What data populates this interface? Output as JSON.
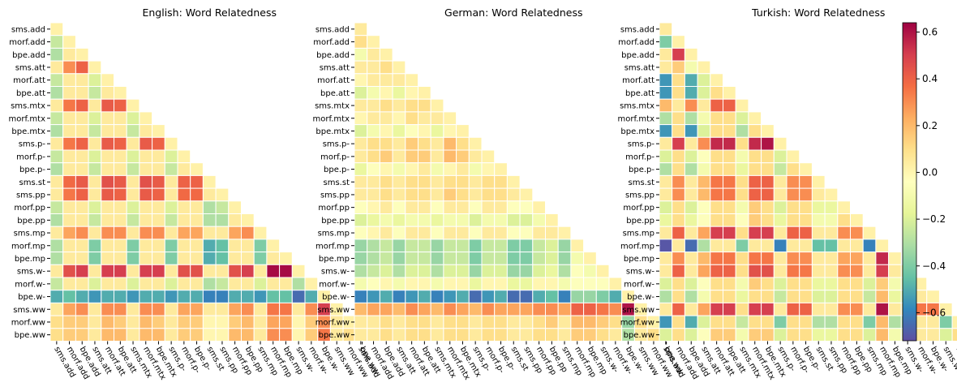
{
  "chart_data": [
    {
      "type": "heatmap",
      "title": "English: Word Relatedness",
      "categories": [
        "sms.add",
        "morf.add",
        "bpe.add",
        "sms.att",
        "morf.att",
        "bpe.att",
        "sms.mtx",
        "morf.mtx",
        "bpe.mtx",
        "sms.p-",
        "morf.p-",
        "bpe.p-",
        "sms.st",
        "sms.pp",
        "morf.pp",
        "bpe.pp",
        "sms.mp",
        "morf.mp",
        "bpe.mp",
        "sms.w-",
        "morf.w-",
        "bpe.w-",
        "sms.ww",
        "morf.ww",
        "bpe.ww"
      ],
      "values": [
        [
          0.02
        ],
        [
          -0.25,
          0.02
        ],
        [
          -0.3,
          0.05,
          0.02
        ],
        [
          0.05,
          0.3,
          0.4,
          0.02
        ],
        [
          -0.25,
          0.05,
          0.05,
          -0.2,
          0.02
        ],
        [
          -0.3,
          0.05,
          0.05,
          -0.25,
          0.05,
          0.02
        ],
        [
          0.05,
          0.35,
          0.4,
          0.05,
          0.42,
          0.4,
          0.02
        ],
        [
          -0.25,
          0.05,
          0.05,
          -0.2,
          0.05,
          0.05,
          -0.2,
          0.02
        ],
        [
          -0.3,
          0.05,
          0.05,
          -0.25,
          0.05,
          0.05,
          -0.25,
          0.05,
          0.02
        ],
        [
          0.05,
          0.35,
          0.4,
          0.05,
          0.42,
          0.4,
          0.05,
          0.42,
          0.4,
          0.02
        ],
        [
          -0.25,
          0.05,
          0.05,
          -0.2,
          0.05,
          0.05,
          -0.2,
          0.05,
          0.05,
          -0.2,
          0.02
        ],
        [
          -0.3,
          0.05,
          0.05,
          -0.25,
          0.05,
          0.05,
          -0.25,
          0.05,
          0.05,
          -0.25,
          0.05,
          0.02
        ],
        [
          0.05,
          0.38,
          0.42,
          0.05,
          0.45,
          0.42,
          0.05,
          0.45,
          0.42,
          0.05,
          0.4,
          0.4,
          0.02
        ],
        [
          0.05,
          0.35,
          0.4,
          0.05,
          0.42,
          0.4,
          0.05,
          0.42,
          0.4,
          0.05,
          0.38,
          0.38,
          0.05,
          0.02
        ],
        [
          -0.25,
          0.05,
          0.05,
          -0.2,
          0.05,
          0.05,
          -0.2,
          0.05,
          0.05,
          -0.2,
          0.05,
          0.05,
          -0.3,
          -0.25,
          0.02
        ],
        [
          -0.3,
          0.05,
          0.05,
          -0.25,
          0.05,
          0.05,
          -0.25,
          0.05,
          0.05,
          -0.25,
          0.05,
          0.05,
          -0.3,
          -0.3,
          0.05,
          0.02
        ],
        [
          0.05,
          0.25,
          0.3,
          0.05,
          0.3,
          0.3,
          0.05,
          0.3,
          0.3,
          0.05,
          0.25,
          0.25,
          0.05,
          0.05,
          0.25,
          0.3,
          0.02
        ],
        [
          -0.3,
          0.05,
          0.05,
          -0.4,
          0.05,
          0.05,
          -0.4,
          0.05,
          0.05,
          -0.4,
          0.05,
          0.05,
          -0.5,
          -0.45,
          0.05,
          0.05,
          -0.4,
          0.02
        ],
        [
          -0.3,
          0.05,
          0.05,
          -0.4,
          0.05,
          0.05,
          -0.4,
          0.05,
          0.05,
          -0.4,
          0.05,
          0.05,
          -0.5,
          -0.45,
          0.05,
          0.05,
          -0.4,
          0.05,
          0.02
        ],
        [
          0.05,
          0.45,
          0.5,
          0.05,
          0.5,
          0.5,
          0.05,
          0.5,
          0.5,
          0.05,
          0.45,
          0.45,
          0.05,
          0.05,
          0.45,
          0.5,
          0.05,
          0.62,
          0.62,
          0.02
        ],
        [
          -0.25,
          0.05,
          0.05,
          -0.2,
          0.05,
          0.05,
          -0.2,
          0.05,
          0.05,
          -0.2,
          0.05,
          0.05,
          -0.3,
          -0.25,
          0.05,
          0.05,
          -0.2,
          0.05,
          0.05,
          -0.3,
          0.02
        ],
        [
          -0.5,
          -0.45,
          -0.5,
          -0.55,
          -0.5,
          -0.5,
          -0.55,
          -0.5,
          -0.5,
          -0.55,
          -0.5,
          -0.5,
          -0.6,
          -0.6,
          -0.5,
          -0.5,
          -0.55,
          -0.45,
          -0.45,
          -0.65,
          -0.5,
          0.02
        ],
        [
          0.05,
          0.25,
          0.3,
          0.05,
          0.3,
          0.3,
          0.05,
          0.3,
          0.3,
          0.05,
          0.25,
          0.25,
          0.05,
          0.05,
          0.25,
          0.3,
          0.05,
          0.35,
          0.35,
          0.05,
          0.3,
          0.5,
          0.02
        ],
        [
          0.1,
          0.15,
          0.15,
          0.05,
          0.2,
          0.15,
          0.05,
          0.2,
          0.15,
          0.05,
          0.15,
          0.15,
          0,
          0,
          0.15,
          0.2,
          0.05,
          0.25,
          0.25,
          0,
          0.15,
          0.3,
          0.05,
          0.02
        ],
        [
          0.1,
          0.15,
          0.15,
          0.05,
          0.2,
          0.2,
          0.05,
          0.2,
          0.2,
          0.05,
          0.15,
          0.15,
          0,
          0,
          0.2,
          0.2,
          0.05,
          0.3,
          0.3,
          0,
          0.15,
          0.35,
          0.05,
          0.1,
          0.02
        ]
      ]
    },
    {
      "type": "heatmap",
      "title": "German: Word Relatedness",
      "categories": [
        "sms.add",
        "morf.add",
        "bpe.add",
        "sms.att",
        "morf.att",
        "bpe.att",
        "sms.mtx",
        "morf.mtx",
        "bpe.mtx",
        "sms.p-",
        "morf.p-",
        "bpe.p-",
        "sms.st",
        "sms.pp",
        "morf.pp",
        "bpe.pp",
        "sms.mp",
        "morf.mp",
        "bpe.mp",
        "sms.w-",
        "morf.w-",
        "bpe.w-",
        "sms.ww",
        "morf.ww",
        "bpe.ww"
      ],
      "values": [
        [
          0.05
        ],
        [
          0.1,
          0.02
        ],
        [
          -0.1,
          0.05,
          0.02
        ],
        [
          0.05,
          0.05,
          0.1,
          0.02
        ],
        [
          0,
          0.05,
          0.05,
          0.05,
          0.02
        ],
        [
          -0.2,
          -0.1,
          0,
          -0.15,
          0,
          0.02
        ],
        [
          0.05,
          0.05,
          0.1,
          0.05,
          0.1,
          0.1,
          0.02
        ],
        [
          0,
          0.05,
          0.05,
          0,
          0.1,
          0.05,
          0.05,
          0.02
        ],
        [
          -0.2,
          -0.1,
          0,
          -0.15,
          -0.05,
          0,
          -0.15,
          0,
          0.02
        ],
        [
          0.05,
          0.1,
          0.1,
          0.05,
          0.15,
          0.1,
          0.05,
          0.2,
          0.1,
          0.02
        ],
        [
          0.05,
          0.1,
          0.15,
          0.05,
          0.15,
          0.15,
          0.05,
          0.2,
          0.15,
          0.05,
          0.02
        ],
        [
          -0.15,
          -0.05,
          0,
          -0.1,
          0,
          0.05,
          -0.1,
          0,
          0.05,
          -0.1,
          0,
          0.02
        ],
        [
          0.05,
          0.05,
          0.1,
          0.05,
          0.1,
          0.1,
          0.05,
          0.1,
          0.1,
          0.05,
          0.1,
          0.1,
          0.02
        ],
        [
          0.05,
          0.05,
          0.1,
          0.05,
          0.1,
          0.1,
          0.05,
          0.15,
          0.1,
          0.05,
          0.1,
          0.1,
          0.05,
          0.02
        ],
        [
          -0.05,
          0,
          0.05,
          -0.05,
          0.05,
          0.05,
          -0.05,
          0.05,
          0.05,
          -0.05,
          0.05,
          0.05,
          -0.05,
          -0.05,
          0.02
        ],
        [
          -0.2,
          -0.15,
          -0.1,
          -0.15,
          -0.1,
          -0.1,
          -0.15,
          -0.1,
          -0.1,
          -0.2,
          -0.1,
          -0.1,
          -0.2,
          -0.2,
          -0.1,
          0.02
        ],
        [
          -0.05,
          0,
          0.05,
          -0.05,
          0.05,
          0.05,
          -0.05,
          0.05,
          0.05,
          -0.05,
          0.05,
          0.05,
          -0.05,
          -0.05,
          0.05,
          0.05,
          0.02
        ],
        [
          -0.35,
          -0.3,
          -0.25,
          -0.35,
          -0.25,
          -0.25,
          -0.35,
          -0.25,
          -0.25,
          -0.4,
          -0.25,
          -0.25,
          -0.4,
          -0.4,
          -0.25,
          -0.2,
          -0.35,
          0.02
        ],
        [
          -0.35,
          -0.3,
          -0.25,
          -0.35,
          -0.25,
          -0.25,
          -0.35,
          -0.25,
          -0.25,
          -0.4,
          -0.25,
          -0.25,
          -0.4,
          -0.4,
          -0.25,
          -0.2,
          -0.35,
          -0.1,
          0.02
        ],
        [
          -0.3,
          -0.25,
          -0.2,
          -0.3,
          -0.2,
          -0.2,
          -0.3,
          -0.2,
          -0.2,
          -0.35,
          -0.2,
          -0.2,
          -0.35,
          -0.35,
          -0.2,
          -0.15,
          -0.3,
          -0.05,
          -0.1,
          0.02
        ],
        [
          -0.1,
          -0.05,
          0,
          -0.1,
          0,
          0,
          -0.1,
          0,
          0,
          -0.15,
          0,
          0,
          -0.15,
          -0.15,
          0,
          0,
          -0.1,
          -0.05,
          -0.05,
          -0.05,
          0.02
        ],
        [
          -0.6,
          -0.55,
          -0.5,
          -0.6,
          -0.55,
          -0.5,
          -0.6,
          -0.55,
          -0.5,
          -0.65,
          -0.55,
          -0.5,
          -0.65,
          -0.65,
          -0.5,
          -0.45,
          -0.6,
          -0.35,
          -0.35,
          -0.4,
          -0.5,
          0.02
        ],
        [
          0.2,
          0.25,
          0.25,
          0.2,
          0.3,
          0.25,
          0.2,
          0.3,
          0.25,
          0.2,
          0.3,
          0.25,
          0.25,
          0.25,
          0.3,
          0.3,
          0.25,
          0.4,
          0.4,
          0.35,
          0.3,
          0.6,
          0.02
        ],
        [
          0.05,
          0.05,
          0.1,
          0.05,
          0.1,
          0.1,
          0.05,
          0.1,
          0.1,
          0.05,
          0.1,
          0.1,
          0.05,
          0.05,
          0.1,
          0.15,
          0.05,
          0.2,
          0.2,
          0.15,
          0.1,
          -0.35,
          0.1,
          0.02
        ],
        [
          0.05,
          0.05,
          0.1,
          0.05,
          0.1,
          0.1,
          0.05,
          0.1,
          0.1,
          0.05,
          0.1,
          0.1,
          0.05,
          0.05,
          0.1,
          0.1,
          0.05,
          0.15,
          0.15,
          0.1,
          0.05,
          -0.3,
          0.05,
          0.1,
          0.02
        ]
      ]
    },
    {
      "type": "heatmap",
      "title": "Turkish: Word Relatedness",
      "categories": [
        "sms.add",
        "morf.add",
        "bpe.add",
        "sms.att",
        "morf.att",
        "bpe.att",
        "sms.mtx",
        "morf.mtx",
        "bpe.mtx",
        "sms.p-",
        "morf.p-",
        "bpe.p-",
        "sms.st",
        "sms.pp",
        "morf.pp",
        "bpe.pp",
        "sms.mp",
        "morf.mp",
        "bpe.mp",
        "sms.w-",
        "morf.w-",
        "bpe.w-",
        "sms.ww",
        "morf.ww",
        "bpe.ww"
      ],
      "values": [
        [
          0.05
        ],
        [
          -0.4,
          0.02
        ],
        [
          0.05,
          0.5,
          0.02
        ],
        [
          0.05,
          0.15,
          -0.1,
          0.02
        ],
        [
          -0.55,
          0.1,
          -0.5,
          -0.2,
          0.02
        ],
        [
          -0.55,
          0.1,
          -0.5,
          -0.2,
          0.1,
          0.02
        ],
        [
          0.2,
          0.05,
          0.3,
          0.05,
          0.4,
          0.4,
          0.02
        ],
        [
          -0.3,
          0.1,
          -0.3,
          -0.1,
          0.1,
          0.1,
          -0.2,
          0.02
        ],
        [
          -0.55,
          0.1,
          -0.55,
          -0.2,
          0.1,
          0.1,
          -0.3,
          0.1,
          0.02
        ],
        [
          0.05,
          0.5,
          0.05,
          0.3,
          0.55,
          0.55,
          0.1,
          0.55,
          0.6,
          0.02
        ],
        [
          -0.2,
          0.1,
          -0.2,
          -0.05,
          0.1,
          0.1,
          -0.1,
          0.1,
          0.1,
          -0.2,
          0.02
        ],
        [
          -0.3,
          0.1,
          -0.3,
          -0.1,
          0.1,
          0.1,
          -0.15,
          0.1,
          0.1,
          -0.25,
          0.1,
          0.02
        ],
        [
          0.05,
          0.3,
          0.05,
          0.2,
          0.35,
          0.35,
          0.1,
          0.4,
          0.4,
          0.05,
          0.3,
          0.3,
          0.02
        ],
        [
          0.05,
          0.3,
          0.05,
          0.2,
          0.35,
          0.35,
          0.1,
          0.4,
          0.4,
          0.05,
          0.3,
          0.3,
          0.05,
          0.02
        ],
        [
          -0.2,
          0.1,
          -0.2,
          -0.05,
          0.1,
          0.1,
          -0.1,
          0.15,
          0.1,
          -0.2,
          0.1,
          0.1,
          -0.15,
          -0.15,
          0.02
        ],
        [
          -0.15,
          0.1,
          -0.15,
          -0.05,
          0.1,
          0.1,
          -0.05,
          0.15,
          0.1,
          -0.15,
          0.1,
          0.1,
          -0.1,
          -0.1,
          0.1,
          0.02
        ],
        [
          0.05,
          0.4,
          0.05,
          0.25,
          0.5,
          0.5,
          0.1,
          0.5,
          0.5,
          0.05,
          0.4,
          0.4,
          0.05,
          0.05,
          0.3,
          0.3,
          0.02
        ],
        [
          -0.7,
          0.05,
          -0.65,
          -0.3,
          0.05,
          0.05,
          -0.4,
          0.05,
          0.05,
          -0.6,
          0.05,
          0.05,
          -0.45,
          -0.45,
          0.05,
          0.05,
          -0.6,
          0.02
        ],
        [
          0.05,
          0.3,
          0.05,
          0.2,
          0.35,
          0.35,
          0.1,
          0.35,
          0.35,
          0.05,
          0.3,
          0.3,
          0.05,
          0.05,
          0.25,
          0.25,
          0.05,
          0.55,
          0.02
        ],
        [
          0.05,
          0.4,
          0.05,
          0.25,
          0.4,
          0.4,
          0.1,
          0.45,
          0.45,
          0.05,
          0.35,
          0.35,
          0.05,
          0.05,
          0.3,
          0.3,
          0.05,
          0.5,
          0.05,
          0.02
        ],
        [
          -0.2,
          0.1,
          -0.2,
          -0.05,
          0.1,
          0.1,
          -0.1,
          0.15,
          0.1,
          -0.2,
          0.1,
          0.1,
          -0.15,
          -0.15,
          0.1,
          0.1,
          -0.2,
          0.15,
          -0.1,
          -0.1,
          0.02
        ],
        [
          -0.3,
          0.1,
          -0.3,
          -0.1,
          0.1,
          0.1,
          -0.15,
          0.1,
          0.1,
          -0.25,
          0.1,
          0.1,
          -0.2,
          -0.2,
          0.1,
          0.1,
          -0.25,
          0.2,
          -0.15,
          -0.2,
          0.05,
          0.02
        ],
        [
          0.05,
          0.4,
          0.05,
          0.25,
          0.5,
          0.5,
          0.1,
          0.5,
          0.5,
          0.05,
          0.4,
          0.4,
          0.05,
          0.05,
          0.3,
          0.3,
          0.05,
          0.6,
          0.05,
          0.05,
          0.35,
          0.35,
          0.02
        ],
        [
          -0.55,
          0.1,
          -0.5,
          -0.2,
          0.1,
          0.1,
          -0.25,
          0.1,
          0.1,
          -0.4,
          0.1,
          0.1,
          -0.3,
          -0.3,
          0.1,
          0.1,
          -0.4,
          0.2,
          -0.3,
          -0.3,
          0.05,
          0.05,
          -0.4,
          0.02
        ],
        [
          -0.2,
          0.1,
          -0.2,
          -0.05,
          0.15,
          0.15,
          -0.1,
          0.15,
          0.15,
          -0.2,
          0.1,
          0.1,
          -0.15,
          -0.15,
          0.1,
          0.1,
          -0.2,
          0.2,
          -0.1,
          -0.1,
          0.05,
          0.05,
          -0.2,
          0.1,
          0.02
        ]
      ]
    }
  ],
  "colorbar": {
    "lim": [
      -0.72,
      0.64
    ],
    "ticks": [
      {
        "value": -0.6,
        "label": "−0.6"
      },
      {
        "value": -0.4,
        "label": "−0.4"
      },
      {
        "value": -0.2,
        "label": "−0.2"
      },
      {
        "value": 0,
        "label": "0.0"
      },
      0.2,
      0.4,
      0.6
    ],
    "colors": [
      "#5e4fa2",
      "#3288bd",
      "#66c2a5",
      "#abdda4",
      "#e6f598",
      "#ffffbf",
      "#fee08b",
      "#fdae61",
      "#f46d43",
      "#d53e4f",
      "#9e0142"
    ]
  }
}
